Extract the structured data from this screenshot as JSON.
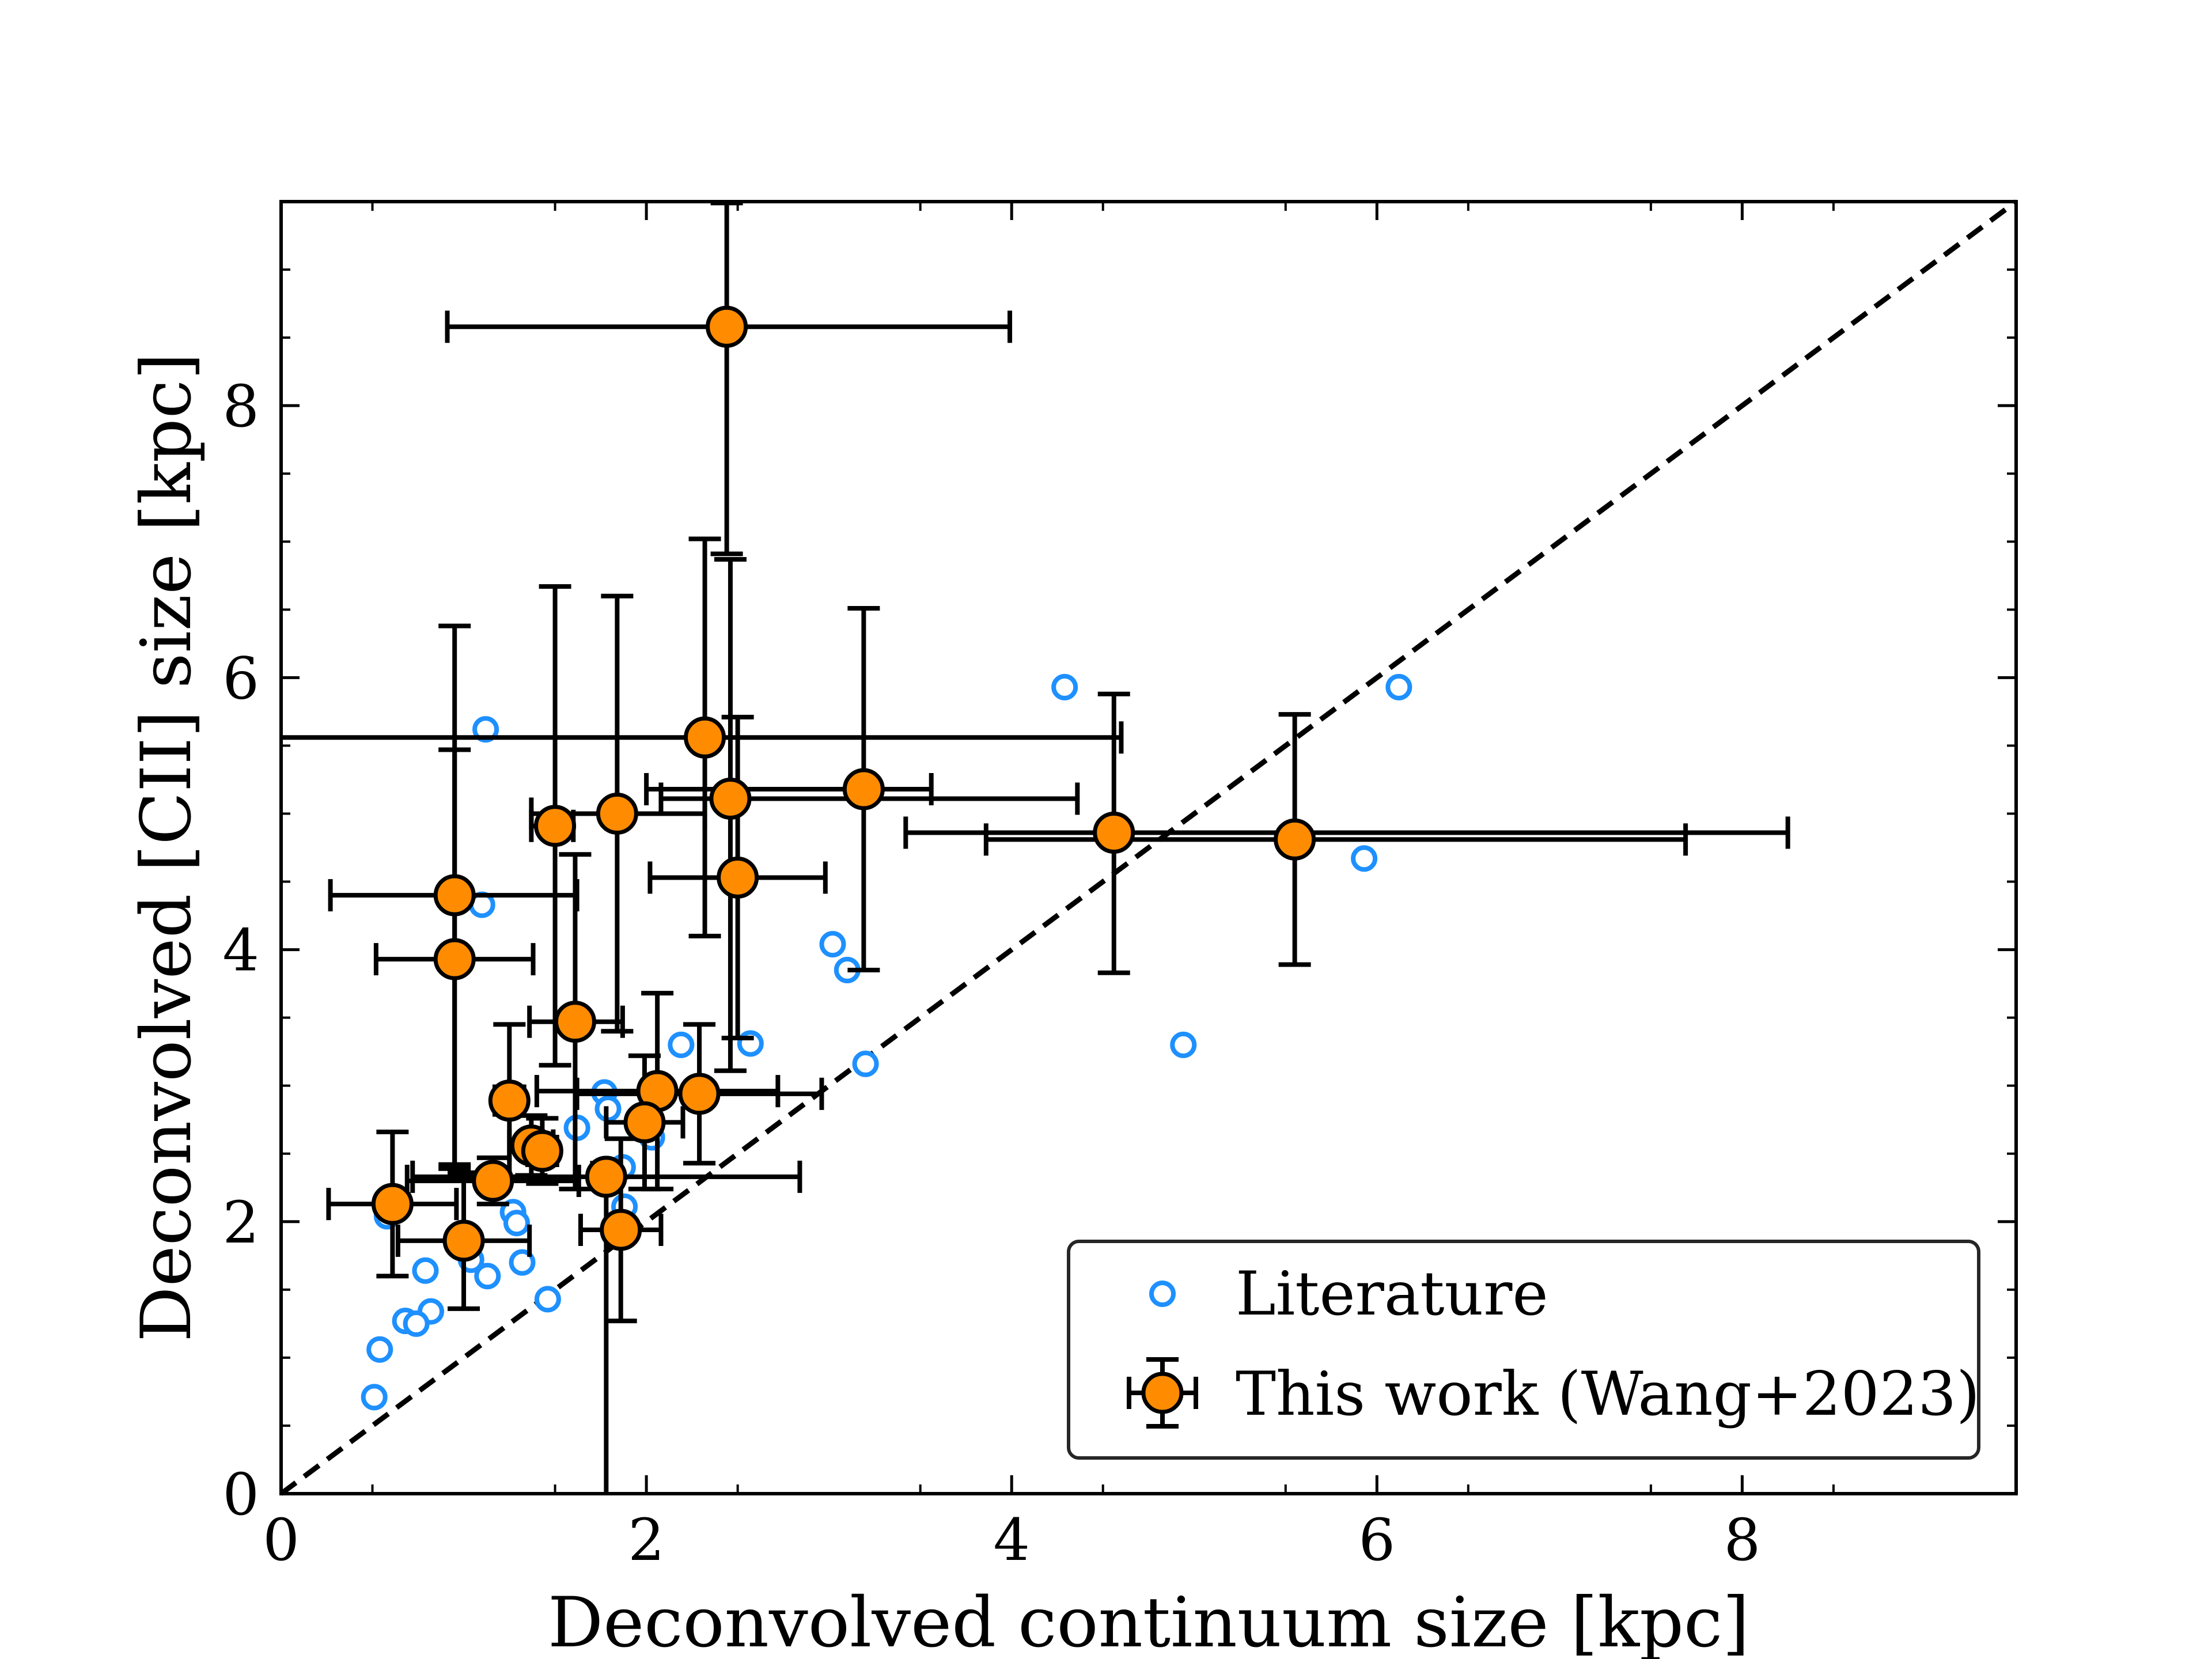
{
  "chart_data": {
    "type": "scatter",
    "title": "",
    "xlabel": "Deconvolved continuum size [kpc]",
    "ylabel": "Deconvolved [CII] size [kpc]",
    "xlim": [
      0,
      9.5
    ],
    "ylim": [
      0,
      9.5
    ],
    "xticks": [
      0,
      2,
      4,
      6,
      8
    ],
    "yticks": [
      0,
      2,
      4,
      6,
      8
    ],
    "grid": false,
    "one_to_one_line": true,
    "legend_position": "bottom-right",
    "colors": {
      "literature": "#1e90ff",
      "this_work_fill": "#ff8c00",
      "edge": "#000000"
    },
    "series": [
      {
        "name": "Literature",
        "marker": "open-circle",
        "points": [
          {
            "x": 1.12,
            "y": 5.62
          },
          {
            "x": 4.29,
            "y": 5.93
          },
          {
            "x": 6.12,
            "y": 5.93
          },
          {
            "x": 5.93,
            "y": 4.67
          },
          {
            "x": 1.1,
            "y": 4.33
          },
          {
            "x": 3.02,
            "y": 4.04
          },
          {
            "x": 3.1,
            "y": 3.85
          },
          {
            "x": 4.94,
            "y": 3.3
          },
          {
            "x": 2.57,
            "y": 3.31
          },
          {
            "x": 2.19,
            "y": 3.3
          },
          {
            "x": 3.2,
            "y": 3.16
          },
          {
            "x": 1.77,
            "y": 2.95
          },
          {
            "x": 1.79,
            "y": 2.83
          },
          {
            "x": 1.62,
            "y": 2.69
          },
          {
            "x": 2.03,
            "y": 2.62
          },
          {
            "x": 1.87,
            "y": 2.4
          },
          {
            "x": 1.88,
            "y": 2.11
          },
          {
            "x": 1.27,
            "y": 2.07
          },
          {
            "x": 1.29,
            "y": 1.99
          },
          {
            "x": 1.32,
            "y": 1.7
          },
          {
            "x": 1.13,
            "y": 1.6
          },
          {
            "x": 0.79,
            "y": 1.64
          },
          {
            "x": 1.46,
            "y": 1.43
          },
          {
            "x": 0.82,
            "y": 1.34
          },
          {
            "x": 0.68,
            "y": 1.27
          },
          {
            "x": 0.74,
            "y": 1.25
          },
          {
            "x": 0.54,
            "y": 1.06
          },
          {
            "x": 0.51,
            "y": 0.71
          },
          {
            "x": 0.58,
            "y": 2.04
          },
          {
            "x": 1.04,
            "y": 1.72
          }
        ]
      },
      {
        "name": "This work (Wang+2023)",
        "marker": "filled-circle-errorbar",
        "points": [
          {
            "x": 2.44,
            "y": 8.58,
            "xerr": [
              1.53,
              1.55
            ],
            "yerr": [
              1.67,
              0.91
            ]
          },
          {
            "x": 2.32,
            "y": 5.56,
            "xerr": [
              2.32,
              2.28
            ],
            "yerr": [
              1.46,
              1.46
            ]
          },
          {
            "x": 3.19,
            "y": 5.18,
            "xerr": [
              1.19,
              0.37
            ],
            "yerr": [
              1.33,
              1.33
            ]
          },
          {
            "x": 2.46,
            "y": 5.11,
            "xerr": [
              0.38,
              1.9
            ],
            "yerr": [
              2.0,
              1.76
            ]
          },
          {
            "x": 1.84,
            "y": 5.0,
            "xerr": [
              0.47,
              0.48
            ],
            "yerr": [
              1.6,
              1.6
            ]
          },
          {
            "x": 1.5,
            "y": 4.91,
            "xerr": [
              0.13,
              0.1
            ],
            "yerr": [
              1.76,
              1.76
            ]
          },
          {
            "x": 4.56,
            "y": 4.86,
            "xerr": [
              1.14,
              3.69
            ],
            "yerr": [
              1.03,
              1.02
            ]
          },
          {
            "x": 5.55,
            "y": 4.81,
            "xerr": [
              1.69,
              2.14
            ],
            "yerr": [
              0.92,
              0.92
            ]
          },
          {
            "x": 2.5,
            "y": 4.53,
            "xerr": [
              0.48,
              0.48
            ],
            "yerr": [
              1.18,
              1.18
            ]
          },
          {
            "x": 0.95,
            "y": 4.4,
            "xerr": [
              0.68,
              0.67
            ],
            "yerr": [
              1.98,
              1.98
            ]
          },
          {
            "x": 0.95,
            "y": 3.93,
            "xerr": [
              0.43,
              0.43
            ],
            "yerr": [
              1.54,
              1.54
            ]
          },
          {
            "x": 1.61,
            "y": 3.47,
            "xerr": [
              0.25,
              0.26
            ],
            "yerr": [
              1.23,
              1.23
            ]
          },
          {
            "x": 2.06,
            "y": 2.96,
            "xerr": [
              0.66,
              0.66
            ],
            "yerr": [
              0.72,
              0.72
            ]
          },
          {
            "x": 2.29,
            "y": 2.94,
            "xerr": [
              0.67,
              0.67
            ],
            "yerr": [
              0.51,
              0.51
            ]
          },
          {
            "x": 1.99,
            "y": 2.73,
            "xerr": [
              0.21,
              0.21
            ],
            "yerr": [
              0.49,
              0.49
            ]
          },
          {
            "x": 1.25,
            "y": 2.89,
            "xerr": [
              0.08,
              0.08
            ],
            "yerr": [
              0.56,
              0.56
            ]
          },
          {
            "x": 1.37,
            "y": 2.56,
            "xerr": [
              0.12,
              0.12
            ],
            "yerr": [
              0.22,
              0.22
            ]
          },
          {
            "x": 1.43,
            "y": 2.52,
            "xerr": [
              0.08,
              0.08
            ],
            "yerr": [
              0.24,
              0.24
            ]
          },
          {
            "x": 1.16,
            "y": 2.3,
            "xerr": [
              0.47,
              0.47
            ],
            "yerr": [
              0.17,
              0.17
            ]
          },
          {
            "x": 1.78,
            "y": 2.33,
            "xerr": [
              1.06,
              1.06
            ],
            "yerr": [
              2.33,
              0.1
            ]
          },
          {
            "x": 0.61,
            "y": 2.13,
            "xerr": [
              0.35,
              0.35
            ],
            "yerr": [
              0.53,
              0.53
            ]
          },
          {
            "x": 1.86,
            "y": 1.94,
            "xerr": [
              0.22,
              0.22
            ],
            "yerr": [
              0.67,
              0.67
            ]
          },
          {
            "x": 1.0,
            "y": 1.86,
            "xerr": [
              0.36,
              0.36
            ],
            "yerr": [
              0.5,
              0.5
            ]
          }
        ]
      }
    ]
  }
}
